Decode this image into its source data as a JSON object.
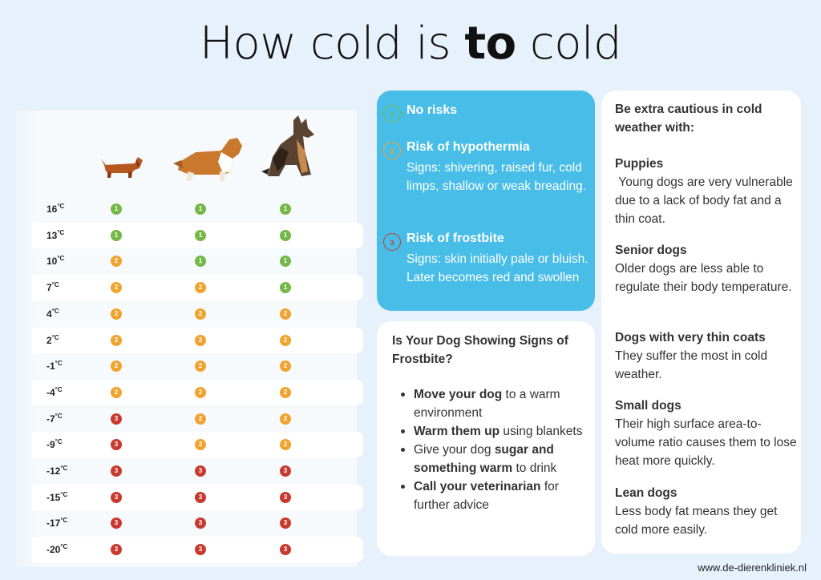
{
  "title": {
    "prefix": "How cold is ",
    "bold": "to",
    "suffix": " cold"
  },
  "table": {
    "dogs": [
      {
        "icon": "dachshund-icon",
        "color": "#b8561f"
      },
      {
        "icon": "collie-icon",
        "color": "#c9782e"
      },
      {
        "icon": "shepherd-icon",
        "color": "#5a4330"
      }
    ],
    "rows": [
      {
        "temp": "16",
        "unit": "°C",
        "levels": [
          1,
          1,
          1
        ]
      },
      {
        "temp": "13",
        "unit": "°C",
        "levels": [
          1,
          1,
          1
        ]
      },
      {
        "temp": "10",
        "unit": "°C",
        "levels": [
          2,
          1,
          1
        ]
      },
      {
        "temp": "7",
        "unit": "°C",
        "levels": [
          2,
          2,
          1
        ]
      },
      {
        "temp": "4",
        "unit": "°C",
        "levels": [
          2,
          2,
          2
        ]
      },
      {
        "temp": "2",
        "unit": "°C",
        "levels": [
          2,
          2,
          2
        ]
      },
      {
        "temp": "-1",
        "unit": "°C",
        "levels": [
          2,
          2,
          2
        ]
      },
      {
        "temp": "-4",
        "unit": "°C",
        "levels": [
          2,
          2,
          2
        ]
      },
      {
        "temp": "-7",
        "unit": "°C",
        "levels": [
          3,
          2,
          2
        ]
      },
      {
        "temp": "-9",
        "unit": "°C",
        "levels": [
          3,
          2,
          2
        ]
      },
      {
        "temp": "-12",
        "unit": "°C",
        "levels": [
          3,
          3,
          3
        ]
      },
      {
        "temp": "-15",
        "unit": "°C",
        "levels": [
          3,
          3,
          3
        ]
      },
      {
        "temp": "-17",
        "unit": "°C",
        "levels": [
          3,
          3,
          3
        ]
      },
      {
        "temp": "-20",
        "unit": "°C",
        "levels": [
          3,
          3,
          3
        ]
      }
    ]
  },
  "risks": [
    {
      "badge": "1",
      "badge_color": "#74b847",
      "title": "No risks",
      "desc": ""
    },
    {
      "badge": "2",
      "badge_color": "#f0a32e",
      "title": "Risk of hypothermia",
      "desc": "Signs: shivering, raised fur, cold limps,  shallow or weak breading."
    },
    {
      "badge": "3",
      "badge_color": "#c93a2e",
      "title": "Risk of frostbite",
      "desc": "Signs: skin initially pale or bluish. Later becomes red and swollen"
    }
  ],
  "frostbite": {
    "title": "Is Your Dog Showing Signs of Frostbite?",
    "items": [
      {
        "bold": "Move your dog",
        "rest": " to a warm environment",
        "pre": ""
      },
      {
        "bold": "Warm them up",
        "rest": " using blankets",
        "pre": ""
      },
      {
        "pre": "Give your dog ",
        "bold": "sugar and something warm",
        "rest": " to drink"
      },
      {
        "bold": "Call your veterinarian",
        "rest": " for further advice",
        "pre": ""
      }
    ]
  },
  "caution": {
    "title": "Be extra cautious in cold weather with:",
    "groups": [
      {
        "heading": "Puppies",
        "text": " Young dogs are very vulnerable due to a lack of body fat and a thin coat."
      },
      {
        "heading": "Senior dogs",
        "text": "Older dogs are less able to regulate their body temperature."
      },
      {
        "heading": "Dogs with very thin coats",
        "text": "They suffer the most in cold weather."
      },
      {
        "heading": "Small dogs",
        "text": "Their high surface area-to-volume ratio causes them to lose heat more quickly."
      },
      {
        "heading": "Lean dogs",
        "text": "Less body fat means they get cold more easily."
      }
    ]
  },
  "website": "www.de-dierenkliniek.nl"
}
